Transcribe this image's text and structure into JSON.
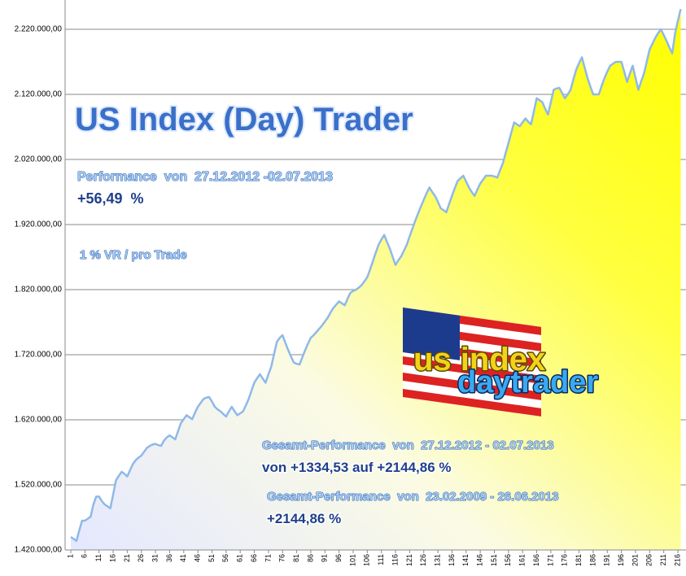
{
  "chart_data": {
    "type": "area",
    "title": "US Index (Day) Trader",
    "annotations": [
      "Performance  von  27.12.2012 -02.07.2013",
      "+56,49  %",
      "1 % VR / pro Trade",
      "Gesamt-Performance  von  27.12.2012 - 02.07.2013",
      "von +1334,53 auf +2144,86 %",
      "Gesamt-Performance  von  23.02.2009 - 26.06.2013",
      "+2144,86 %"
    ],
    "logo": [
      "us index",
      "daytrader"
    ],
    "x": [
      1,
      2,
      3,
      4,
      5,
      6,
      7,
      8,
      9,
      10,
      11,
      12,
      13,
      14,
      15,
      16,
      17,
      18,
      19,
      20,
      21,
      22,
      23,
      24,
      25,
      26,
      27,
      28,
      29,
      30,
      31,
      32,
      33,
      34,
      35,
      36,
      37,
      38,
      39,
      40,
      41,
      42,
      43,
      44,
      45,
      46,
      47,
      48,
      49,
      50,
      51,
      52,
      53,
      54,
      55,
      56,
      57,
      58,
      59,
      60,
      61,
      62,
      63,
      64,
      65,
      66,
      67,
      68,
      69,
      70,
      71,
      72,
      73,
      74,
      75,
      76,
      77,
      78,
      79,
      80,
      81,
      82,
      83,
      84,
      85,
      86,
      87,
      88,
      89,
      90,
      91,
      92,
      93,
      94,
      95,
      96,
      97,
      98,
      99,
      100,
      101,
      102,
      103,
      104,
      105,
      106,
      107,
      108,
      109,
      110,
      111,
      112,
      113,
      114,
      115,
      116,
      117,
      118,
      119,
      120,
      121,
      122,
      123,
      124,
      125,
      126,
      127,
      128,
      129,
      130,
      131,
      132,
      133,
      134,
      135,
      136,
      137,
      138,
      139,
      140,
      141,
      142,
      143,
      144,
      145,
      146,
      147,
      148,
      149,
      150,
      151,
      152,
      153,
      154,
      155,
      156,
      157,
      158,
      159,
      160,
      161,
      162,
      163,
      164,
      165,
      166,
      167,
      168,
      169,
      170,
      171,
      172,
      173,
      174,
      175,
      176,
      177,
      178,
      179,
      180,
      181,
      182,
      183,
      184,
      185,
      186,
      187,
      188,
      189,
      190,
      191,
      192,
      193,
      194,
      195,
      196,
      197,
      198,
      199,
      200,
      201,
      202,
      203,
      204,
      205,
      206,
      207,
      208,
      209,
      210,
      211,
      212,
      213,
      214,
      215,
      216,
      217
    ],
    "values": [
      1440000,
      1437000,
      1434000,
      1450000,
      1465000,
      1465000,
      1468000,
      1471000,
      1490000,
      1502000,
      1502000,
      1495000,
      1490000,
      1487000,
      1484000,
      1505000,
      1527000,
      1534000,
      1540000,
      1537000,
      1533000,
      1543000,
      1552000,
      1558000,
      1562000,
      1565000,
      1571000,
      1577000,
      1580000,
      1582000,
      1583000,
      1581000,
      1580000,
      1588000,
      1593000,
      1596000,
      1593000,
      1590000,
      1603000,
      1615000,
      1621000,
      1627000,
      1624000,
      1621000,
      1631000,
      1640000,
      1646000,
      1652000,
      1654000,
      1655000,
      1648000,
      1640000,
      1636000,
      1633000,
      1629000,
      1625000,
      1633000,
      1640000,
      1633000,
      1627000,
      1630000,
      1633000,
      1642000,
      1652000,
      1665000,
      1677000,
      1684000,
      1690000,
      1683000,
      1677000,
      1690000,
      1702000,
      1721000,
      1740000,
      1746000,
      1750000,
      1738000,
      1727000,
      1717000,
      1708000,
      1706000,
      1705000,
      1716000,
      1727000,
      1737000,
      1746000,
      1750000,
      1755000,
      1760000,
      1765000,
      1771000,
      1777000,
      1785000,
      1792000,
      1797000,
      1802000,
      1799000,
      1796000,
      1806000,
      1815000,
      1818000,
      1820000,
      1823000,
      1827000,
      1833000,
      1839000,
      1851000,
      1864000,
      1877000,
      1889000,
      1897000,
      1904000,
      1893000,
      1883000,
      1870000,
      1858000,
      1865000,
      1871000,
      1880000,
      1889000,
      1902000,
      1914000,
      1926000,
      1937000,
      1948000,
      1958000,
      1968000,
      1977000,
      1970000,
      1964000,
      1955000,
      1945000,
      1942000,
      1939000,
      1952000,
      1964000,
      1976000,
      1987000,
      1991000,
      1995000,
      1986000,
      1977000,
      1970000,
      1964000,
      1974000,
      1983000,
      1989000,
      1995000,
      1995000,
      1995000,
      1994000,
      1992000,
      2003000,
      2014000,
      2030000,
      2045000,
      2061000,
      2077000,
      2074000,
      2071000,
      2077000,
      2083000,
      2078000,
      2074000,
      2094000,
      2114000,
      2111000,
      2108000,
      2098000,
      2089000,
      2108000,
      2127000,
      2129000,
      2130000,
      2122000,
      2114000,
      2120000,
      2127000,
      2143000,
      2158000,
      2168000,
      2177000,
      2161000,
      2145000,
      2132000,
      2120000,
      2120000,
      2120000,
      2133000,
      2145000,
      2155000,
      2164000,
      2167000,
      2170000,
      2170000,
      2170000,
      2155000,
      2139000,
      2152000,
      2164000,
      2145000,
      2127000,
      2140000,
      2152000,
      2171000,
      2189000,
      2198000,
      2207000,
      2214000,
      2220000,
      2211000,
      2202000,
      2192000,
      2183000,
      2214000,
      2233000,
      2251000
    ],
    "color": "#ffff00",
    "xlim": [
      1,
      217
    ],
    "xticks": [
      1,
      6,
      11,
      16,
      21,
      26,
      31,
      36,
      41,
      46,
      51,
      56,
      61,
      66,
      71,
      76,
      81,
      86,
      91,
      96,
      101,
      106,
      111,
      116,
      121,
      126,
      131,
      136,
      141,
      146,
      151,
      156,
      161,
      166,
      171,
      176,
      181,
      186,
      191,
      196,
      201,
      206,
      211,
      216
    ],
    "ylim": [
      1420000,
      2265000
    ],
    "yticks": [
      {
        "value": 1420000,
        "label": "1.420.000,00"
      },
      {
        "value": 1520000,
        "label": "1.520.000,00"
      },
      {
        "value": 1620000,
        "label": "1.620.000,00"
      },
      {
        "value": 1720000,
        "label": "1.720.000,00"
      },
      {
        "value": 1820000,
        "label": "1.820.000,00"
      },
      {
        "value": 1920000,
        "label": "1.920.000,00"
      },
      {
        "value": 2020000,
        "label": "2.020.000,00"
      },
      {
        "value": 2120000,
        "label": "2.120.000,00"
      },
      {
        "value": 2220000,
        "label": "2.220.000,00"
      }
    ],
    "grid": true
  }
}
